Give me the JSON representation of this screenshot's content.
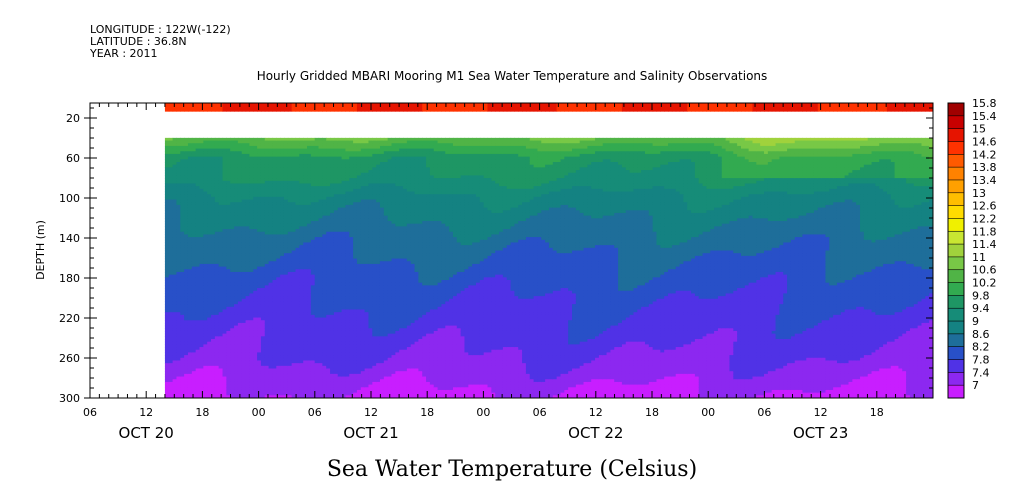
{
  "header": {
    "longitude": "LONGITUDE : 122W(-122)",
    "latitude": "LATITUDE : 36.8N",
    "year": "YEAR : 2011"
  },
  "chart_data": {
    "type": "heatmap",
    "title": "Hourly Gridded MBARI Mooring M1 Sea Water Temperature and Salinity Observations",
    "colorbar_title": "Sea Water Temperature (Celsius)",
    "ylabel": "DEPTH (m)",
    "xlabel": "",
    "ylim": [
      300,
      5
    ],
    "y_ticks": [
      20,
      60,
      100,
      140,
      180,
      220,
      260,
      300
    ],
    "x_range_hours": [
      0,
      90
    ],
    "x_hour_ticks": [
      "06",
      "12",
      "18",
      "00",
      "06",
      "12",
      "18",
      "00",
      "06",
      "12",
      "18",
      "00",
      "06",
      "12",
      "18"
    ],
    "x_days": [
      "OCT 20",
      "OCT 21",
      "OCT 22",
      "OCT 23"
    ],
    "data_start": "OCT 20 14:00",
    "data_end": "OCT 23 23:00",
    "gap_depth_range": [
      12,
      40
    ],
    "colorbar_levels": [
      "15.8",
      "15.4",
      "15",
      "14.6",
      "14.2",
      "13.8",
      "13.4",
      "13",
      "12.6",
      "12.2",
      "11.8",
      "11.4",
      "11",
      "10.6",
      "10.2",
      "9.8",
      "9.4",
      "9",
      "8.6",
      "8.2",
      "7.8",
      "7.4",
      "7"
    ],
    "colorbar_colors": [
      "#a00000",
      "#c80000",
      "#e61400",
      "#ff3200",
      "#ff5a00",
      "#ff8200",
      "#ffa000",
      "#ffbe00",
      "#ffdc00",
      "#f0f000",
      "#c8e632",
      "#a0d23c",
      "#78c846",
      "#50b446",
      "#32aa50",
      "#1e9664",
      "#168c78",
      "#148282",
      "#1e6e9a",
      "#2850c8",
      "#5032e6",
      "#8c28f0",
      "#c81eff"
    ],
    "depth_profile": [
      {
        "depth": 10,
        "temp": 15.0
      },
      {
        "depth": 40,
        "temp": 11.0
      },
      {
        "depth": 60,
        "temp": 10.0
      },
      {
        "depth": 80,
        "temp": 9.8
      },
      {
        "depth": 100,
        "temp": 9.3
      },
      {
        "depth": 140,
        "temp": 8.8
      },
      {
        "depth": 180,
        "temp": 8.4
      },
      {
        "depth": 220,
        "temp": 8.1
      },
      {
        "depth": 260,
        "temp": 7.8
      },
      {
        "depth": 300,
        "temp": 7.3
      }
    ]
  }
}
